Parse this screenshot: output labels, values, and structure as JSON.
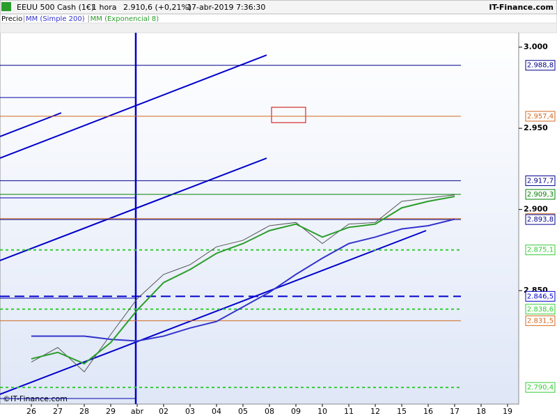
{
  "header": {
    "symbol": "EEUU 500 Cash (1€)",
    "interval": "1 hora",
    "quote": "2.910,6 (+0,21%)",
    "datetime": "17-abr-2019 7:36:30",
    "brand": "IT-Finance.com",
    "watermark": "©IT-Finance.com"
  },
  "chart_data": {
    "type": "line",
    "categories": [
      "26",
      "27",
      "28",
      "29",
      "abr",
      "02",
      "03",
      "04",
      "05",
      "08",
      "09",
      "10",
      "11",
      "12",
      "15",
      "16",
      "17",
      "18",
      "19"
    ],
    "series": [
      {
        "name": "Precio",
        "color": "#555555",
        "values": [
          2806,
          2815,
          2800,
          2823,
          2845,
          2860,
          2866,
          2877,
          2881,
          2890,
          2892,
          2879,
          2891,
          2892,
          2905,
          2907,
          2909,
          null,
          null
        ]
      },
      {
        "name": "MM (Simple 200)",
        "color": "#3333cc",
        "values": [
          2822,
          2822,
          2822,
          2820,
          2819,
          2822,
          2827,
          2831,
          2840,
          2849,
          2860,
          2870,
          2879,
          2883,
          2888,
          2890,
          2894,
          null,
          null
        ]
      },
      {
        "name": "MM (Exponencial 8)",
        "color": "#2a9d2a",
        "values": [
          2808,
          2812,
          2805,
          2818,
          2838,
          2855,
          2863,
          2873,
          2879,
          2887,
          2891,
          2883,
          2889,
          2891,
          2901,
          2905,
          2908,
          null,
          null
        ]
      }
    ],
    "ylim": [
      2778,
      3014
    ],
    "yticks": [
      {
        "value": 3000,
        "label": "3.000"
      },
      {
        "value": 2950,
        "label": "2.950"
      },
      {
        "value": 2900,
        "label": "2.900"
      },
      {
        "value": 2850,
        "label": "2.850"
      }
    ],
    "levels": [
      {
        "value": 2988.8,
        "label": "2.988,8",
        "color": "#00008b",
        "dashed": false
      },
      {
        "value": 2957.4,
        "label": "2.957,4",
        "color": "#d2691e",
        "dashed": false
      },
      {
        "value": 2917.7,
        "label": "2.917,7",
        "color": "#00008b",
        "dashed": false
      },
      {
        "value": 2909.3,
        "label": "2.909,3",
        "color": "#008000",
        "dashed": false
      },
      {
        "value": 2894.4,
        "label": "2.894,4",
        "color": "#d2691e",
        "dashed": false
      },
      {
        "value": 2893.8,
        "label": "2.893,8",
        "color": "#00008b",
        "dashed": false
      },
      {
        "value": 2875.1,
        "label": "2.875,1",
        "color": "#33cc33",
        "dashed": true
      },
      {
        "value": 2846.5,
        "label": "2.846,5",
        "color": "#0000cc",
        "dashed": true
      },
      {
        "value": 2838.6,
        "label": "2.838,6",
        "color": "#33cc33",
        "dashed": true
      },
      {
        "value": 2831.5,
        "label": "2.831,5",
        "color": "#d2691e",
        "dashed": false
      },
      {
        "value": 2790.4,
        "label": "2.790,4",
        "color": "#33cc33",
        "dashed": true
      }
    ]
  }
}
